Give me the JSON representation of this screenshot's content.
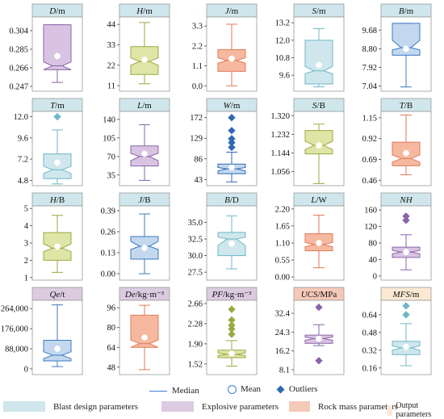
{
  "colors": {
    "blast": "#cfe7ec",
    "explosive": "#dccbe0",
    "rock": "#f5c9b8",
    "output": "#fbe9d4"
  },
  "legend": {
    "median": "Median",
    "mean": "Mean",
    "outliers": "Outliers",
    "blast": "Blast design parameters",
    "explosive": "Explosive parameters",
    "rock": "Rock mass parameters",
    "output": "Output parameters"
  },
  "chart_data": [
    {
      "type": "box",
      "title_main": "D",
      "title_unit": "/m",
      "group": "blast",
      "stroke": "#8a63a8",
      "fill": "#d8c4e2",
      "ylim": [
        0.242,
        0.318
      ],
      "ticks": [
        "0.304",
        "0.285",
        "0.266",
        "0.247"
      ],
      "tickvals": [
        0.304,
        0.285,
        0.266,
        0.247
      ],
      "q1": 0.264,
      "q3": 0.31,
      "median": 0.268,
      "notch_lo": 0.264,
      "notch_hi": 0.272,
      "wlo": 0.251,
      "whi": 0.31,
      "mean": 0.278,
      "outliers": []
    },
    {
      "type": "box",
      "title_main": "H",
      "title_unit": "/m",
      "group": "blast",
      "stroke": "#9aa842",
      "fill": "#dfe5a6",
      "ylim": [
        8,
        48
      ],
      "ticks": [
        "44",
        "33",
        "22",
        "11"
      ],
      "tickvals": [
        44,
        33,
        22,
        11
      ],
      "q1": 17,
      "q3": 32,
      "median": 24,
      "notch_lo": 22,
      "notch_hi": 26,
      "wlo": 12,
      "whi": 45,
      "mean": 25,
      "outliers": []
    },
    {
      "type": "box",
      "title_main": "J",
      "title_unit": "/m",
      "group": "blast",
      "stroke": "#e07a5a",
      "fill": "#f6b9a0",
      "ylim": [
        -0.3,
        3.8
      ],
      "ticks": [
        "3.3",
        "2.2",
        "1.1",
        "0.0"
      ],
      "tickvals": [
        3.3,
        2.2,
        1.1,
        0.0
      ],
      "q1": 0.8,
      "q3": 2.0,
      "median": 1.4,
      "notch_lo": 1.25,
      "notch_hi": 1.55,
      "wlo": 0.0,
      "whi": 3.4,
      "mean": 1.5,
      "outliers": []
    },
    {
      "type": "box",
      "title_main": "S",
      "title_unit": "/m",
      "group": "blast",
      "stroke": "#6fb7c6",
      "fill": "#cfe7ec",
      "ylim": [
        8.5,
        13.6
      ],
      "ticks": [
        "13.2",
        "12.0",
        "10.8",
        "9.6"
      ],
      "tickvals": [
        13.2,
        12.0,
        10.8,
        9.6
      ],
      "q1": 9.0,
      "q3": 12.0,
      "median": 9.9,
      "notch_lo": 9.7,
      "notch_hi": 10.2,
      "wlo": 8.8,
      "whi": 12.8,
      "mean": 10.3,
      "outliers": []
    },
    {
      "type": "box",
      "title_main": "B",
      "title_unit": "/m",
      "group": "blast",
      "stroke": "#3c78c0",
      "fill": "#c3d8ef",
      "ylim": [
        6.8,
        10.3
      ],
      "ticks": [
        "9.68",
        "8.80",
        "7.92",
        "7.04"
      ],
      "tickvals": [
        9.68,
        8.8,
        7.92,
        7.04
      ],
      "q1": 8.5,
      "q3": 10.0,
      "median": 8.85,
      "notch_lo": 8.75,
      "notch_hi": 9.2,
      "wlo": 7.0,
      "whi": 10.0,
      "mean": 8.8,
      "outliers": []
    },
    {
      "type": "box",
      "title_main": "T",
      "title_unit": "/m",
      "group": "blast",
      "stroke": "#6fb7c6",
      "fill": "#cfe7ec",
      "ylim": [
        4.2,
        12.6
      ],
      "ticks": [
        "12.0",
        "9.6",
        "7.2",
        "4.8"
      ],
      "tickvals": [
        12.0,
        9.6,
        7.2,
        4.8
      ],
      "q1": 5.0,
      "q3": 7.8,
      "median": 6.0,
      "notch_lo": 5.6,
      "notch_hi": 6.4,
      "wlo": 4.4,
      "whi": 10.5,
      "mean": 6.8,
      "outliers": [
        12.0
      ]
    },
    {
      "type": "box",
      "title_main": "L",
      "title_unit": "/m",
      "group": "blast",
      "stroke": "#8a63a8",
      "fill": "#d8c4e2",
      "ylim": [
        15,
        155
      ],
      "ticks": [
        "140",
        "105",
        "70",
        "35"
      ],
      "tickvals": [
        140,
        105,
        70,
        35
      ],
      "q1": 52,
      "q3": 90,
      "median": 70,
      "notch_lo": 62,
      "notch_hi": 76,
      "wlo": 25,
      "whi": 130,
      "mean": 75,
      "outliers": []
    },
    {
      "type": "box",
      "title_main": "W",
      "title_unit": "/m",
      "group": "blast",
      "stroke": "#2f68b3",
      "fill": "#c3d8ef",
      "ylim": [
        30,
        185
      ],
      "ticks": [
        "172",
        "129",
        "86",
        "43"
      ],
      "tickvals": [
        172,
        129,
        86,
        43
      ],
      "q1": 55,
      "q3": 75,
      "median": 65,
      "notch_lo": 61,
      "notch_hi": 68,
      "wlo": 38,
      "whi": 100,
      "mean": 68,
      "outliers": [
        110,
        120,
        128,
        145,
        172
      ]
    },
    {
      "type": "box",
      "title_main": "S",
      "title_unit": "/B",
      "group": "blast",
      "stroke": "#9aa842",
      "fill": "#dfe5a6",
      "ylim": [
        0.99,
        1.34
      ],
      "ticks": [
        "1.320",
        "1.232",
        "1.144",
        "1.056"
      ],
      "tickvals": [
        1.32,
        1.232,
        1.144,
        1.056
      ],
      "q1": 1.14,
      "q3": 1.25,
      "median": 1.18,
      "notch_lo": 1.16,
      "notch_hi": 1.2,
      "wlo": 1.0,
      "whi": 1.28,
      "mean": 1.18,
      "outliers": []
    },
    {
      "type": "box",
      "title_main": "T",
      "title_unit": "/B",
      "group": "blast",
      "stroke": "#e07a5a",
      "fill": "#f6b9a0",
      "ylim": [
        0.4,
        1.22
      ],
      "ticks": [
        "1.15",
        "0.92",
        "0.69",
        "0.46"
      ],
      "tickvals": [
        1.15,
        0.92,
        0.69,
        0.46
      ],
      "q1": 0.62,
      "q3": 0.88,
      "median": 0.7,
      "notch_lo": 0.66,
      "notch_hi": 0.74,
      "wlo": 0.52,
      "whi": 1.18,
      "mean": 0.76,
      "outliers": []
    },
    {
      "type": "box",
      "title_main": "H",
      "title_unit": "/B",
      "group": "blast",
      "stroke": "#9aa842",
      "fill": "#dfe5a6",
      "ylim": [
        0.85,
        5.15
      ],
      "ticks": [
        "5",
        "4",
        "3",
        "2",
        "1"
      ],
      "tickvals": [
        5,
        4,
        3,
        2,
        1
      ],
      "q1": 2.0,
      "q3": 3.6,
      "median": 2.7,
      "notch_lo": 2.5,
      "notch_hi": 2.95,
      "wlo": 1.3,
      "whi": 4.6,
      "mean": 2.8,
      "outliers": []
    },
    {
      "type": "box",
      "title_main": "J",
      "title_unit": "/B",
      "group": "blast",
      "stroke": "#3c78c0",
      "fill": "#c3d8ef",
      "ylim": [
        -0.04,
        0.42
      ],
      "ticks": [
        "0.39",
        "0.26",
        "0.13",
        "0.00"
      ],
      "tickvals": [
        0.39,
        0.26,
        0.13,
        0.0
      ],
      "q1": 0.09,
      "q3": 0.23,
      "median": 0.17,
      "notch_lo": 0.15,
      "notch_hi": 0.2,
      "wlo": 0.0,
      "whi": 0.37,
      "mean": 0.16,
      "outliers": []
    },
    {
      "type": "box",
      "title_main": "B",
      "title_unit": "/D",
      "group": "blast",
      "stroke": "#6fb7c6",
      "fill": "#cfe7ec",
      "ylim": [
        26.3,
        37.5
      ],
      "ticks": [
        "35.0",
        "32.5",
        "30.0",
        "27.5"
      ],
      "tickvals": [
        35.0,
        32.5,
        30.0,
        27.5
      ],
      "q1": 30.0,
      "q3": 33.5,
      "median": 32.5,
      "notch_lo": 31.5,
      "notch_hi": 32.8,
      "wlo": 28.0,
      "whi": 36.0,
      "mean": 31.8,
      "outliers": []
    },
    {
      "type": "box",
      "title_main": "L",
      "title_unit": "/W",
      "group": "blast",
      "stroke": "#e07a5a",
      "fill": "#f6b9a0",
      "ylim": [
        -0.1,
        2.3
      ],
      "ticks": [
        "2.20",
        "1.65",
        "1.10",
        "0.55",
        "0.00"
      ],
      "tickvals": [
        2.2,
        1.65,
        1.1,
        0.55,
        0.0
      ],
      "q1": 0.85,
      "q3": 1.4,
      "median": 1.05,
      "notch_lo": 0.98,
      "notch_hi": 1.12,
      "wlo": 0.3,
      "whi": 2.0,
      "mean": 1.1,
      "outliers": []
    },
    {
      "type": "box",
      "title_main": "NH",
      "title_unit": "",
      "group": "blast",
      "stroke": "#8a63a8",
      "fill": "#d8c4e2",
      "ylim": [
        -10,
        170
      ],
      "ticks": [
        "160",
        "120",
        "80",
        "40",
        "0"
      ],
      "tickvals": [
        160,
        120,
        80,
        40,
        0
      ],
      "q1": 45,
      "q3": 70,
      "median": 58,
      "notch_lo": 54,
      "notch_hi": 62,
      "wlo": 15,
      "whi": 100,
      "mean": 58,
      "outliers": [
        135,
        145
      ]
    },
    {
      "type": "box",
      "title_main": "Qe",
      "title_unit": "/t",
      "group": "explosive",
      "stroke": "#3c78c0",
      "fill": "#c3d8ef",
      "ylim": [
        -25000,
        300000
      ],
      "ticks": [
        "264,000",
        "176,000",
        "88,000",
        "0"
      ],
      "tickvals": [
        264000,
        176000,
        88000,
        0
      ],
      "q1": 35000,
      "q3": 125000,
      "median": 60000,
      "notch_lo": 45000,
      "notch_hi": 75000,
      "wlo": 10000,
      "whi": 280000,
      "mean": 88000,
      "outliers": []
    },
    {
      "type": "box",
      "title_main": "De",
      "title_unit": "/kg·m⁻³",
      "group": "explosive",
      "stroke": "#e07a5a",
      "fill": "#f6b9a0",
      "ylim": [
        42,
        102
      ],
      "ticks": [
        "96",
        "80",
        "64",
        "48"
      ],
      "tickvals": [
        96,
        80,
        64,
        48
      ],
      "q1": 64,
      "q3": 90,
      "median": 67,
      "notch_lo": 64,
      "notch_hi": 70,
      "wlo": 46,
      "whi": 98,
      "mean": 72,
      "outliers": []
    },
    {
      "type": "box",
      "title_main": "PF",
      "title_unit": "/kg·m⁻³",
      "group": "explosive",
      "stroke": "#9aa842",
      "fill": "#dfe5a6",
      "ylim": [
        1.32,
        2.72
      ],
      "ticks": [
        "2.66",
        "2.28",
        "1.90",
        "1.52"
      ],
      "tickvals": [
        2.66,
        2.28,
        1.9,
        1.52
      ],
      "q1": 1.64,
      "q3": 1.78,
      "median": 1.7,
      "notch_lo": 1.68,
      "notch_hi": 1.73,
      "wlo": 1.48,
      "whi": 1.96,
      "mean": 1.72,
      "outliers": [
        2.08,
        2.18,
        2.25,
        2.35,
        2.55
      ]
    },
    {
      "type": "box",
      "title_main": "UCS",
      "title_unit": "/MPa",
      "group": "rock",
      "stroke": "#8a63a8",
      "fill": "#d8c4e2",
      "ylim": [
        6.0,
        38.0
      ],
      "ticks": [
        "32.4",
        "24.3",
        "16.2",
        "8.1"
      ],
      "tickvals": [
        32.4,
        24.3,
        16.2,
        8.1
      ],
      "q1": 19.5,
      "q3": 23.0,
      "median": 21.5,
      "notch_lo": 20.8,
      "notch_hi": 22.2,
      "wlo": 18.5,
      "whi": 27.5,
      "mean": 21.5,
      "outliers": [
        35.0,
        12.0
      ]
    },
    {
      "type": "box",
      "title_main": "MFS",
      "title_unit": "/m",
      "group": "output",
      "stroke": "#6fb7c6",
      "fill": "#cfe7ec",
      "ylim": [
        0.1,
        0.77
      ],
      "ticks": [
        "0.64",
        "0.48",
        "0.32",
        "0.16"
      ],
      "tickvals": [
        0.64,
        0.48,
        0.32,
        0.16
      ],
      "q1": 0.28,
      "q3": 0.4,
      "median": 0.34,
      "notch_lo": 0.32,
      "notch_hi": 0.36,
      "wlo": 0.18,
      "whi": 0.56,
      "mean": 0.35,
      "outliers": [
        0.64,
        0.72
      ]
    }
  ]
}
